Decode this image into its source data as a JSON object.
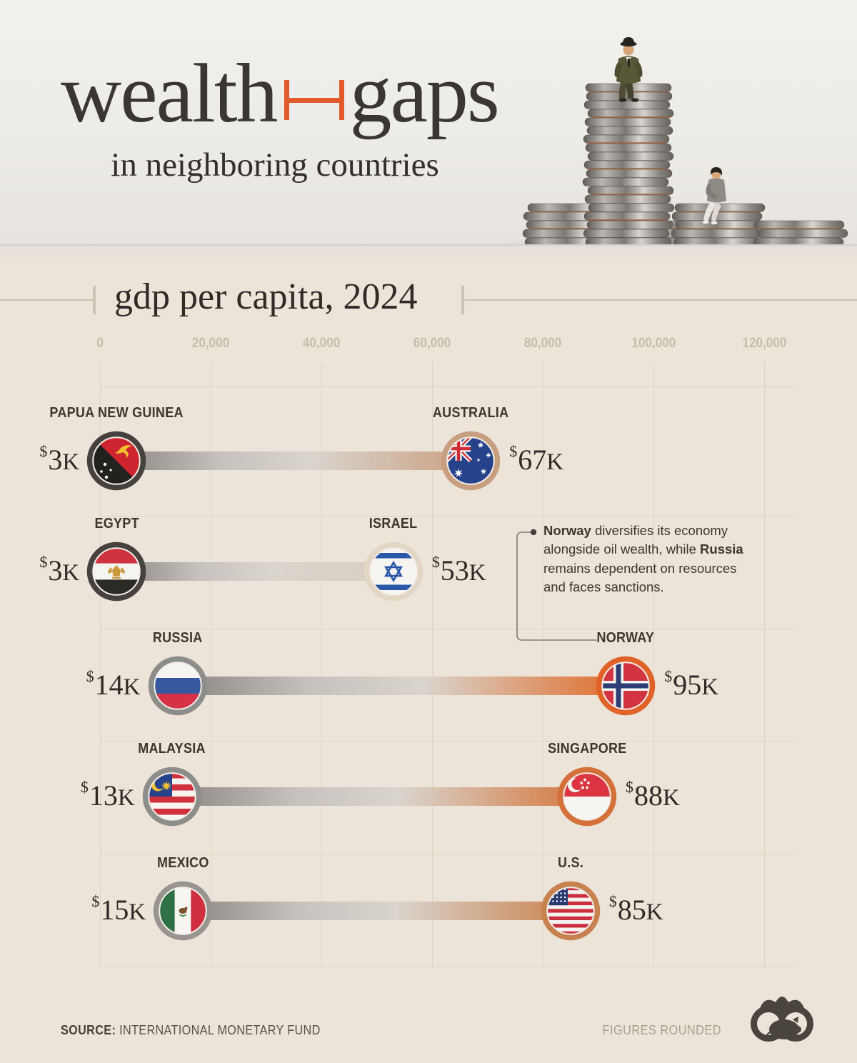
{
  "header": {
    "title_left": "wealth",
    "title_right": "gaps",
    "subtitle": "in neighboring countries",
    "accent_color": "#e05a2b",
    "gap_icon": "i-beam-connector-icon",
    "hero_icon": "coin-stacks-with-figurines-photo"
  },
  "section": {
    "title": "gdp per capita, 2024"
  },
  "chart_data": {
    "type": "dumbbell",
    "title": "gdp per capita, 2024",
    "unit": "USD",
    "grid": true,
    "x_axis": {
      "range": [
        0,
        120000
      ],
      "ticks": [
        0,
        20000,
        40000,
        60000,
        80000,
        100000,
        120000
      ],
      "tick_labels": [
        "0",
        "20,000",
        "40,000",
        "60,000",
        "80,000",
        "100,000",
        "120,000"
      ]
    },
    "pairs": [
      {
        "left": {
          "country": "PAPUA NEW GUINEA",
          "value": 3000,
          "label": "$3K",
          "flag": "papua-new-guinea",
          "ring_color": "#45413c"
        },
        "right": {
          "country": "AUSTRALIA",
          "value": 67000,
          "label": "$67K",
          "flag": "australia",
          "ring_color": "#c79e7f"
        },
        "bar_end_color": "#cba183"
      },
      {
        "left": {
          "country": "EGYPT",
          "value": 3000,
          "label": "$3K",
          "flag": "egypt",
          "ring_color": "#45413c"
        },
        "right": {
          "country": "ISRAEL",
          "value": 53000,
          "label": "$53K",
          "flag": "israel",
          "ring_color": "#e2d6c5"
        },
        "bar_end_color": "#d8cfc2"
      },
      {
        "left": {
          "country": "RUSSIA",
          "value": 14000,
          "label": "$14K",
          "flag": "russia",
          "ring_color": "#8d8d8b"
        },
        "right": {
          "country": "NORWAY",
          "value": 95000,
          "label": "$95K",
          "flag": "norway",
          "ring_color": "#e06228"
        },
        "bar_end_color": "#e06b28"
      },
      {
        "left": {
          "country": "MALAYSIA",
          "value": 13000,
          "label": "$13K",
          "flag": "malaysia",
          "ring_color": "#8d8d8b"
        },
        "right": {
          "country": "SINGAPORE",
          "value": 88000,
          "label": "$88K",
          "flag": "singapore",
          "ring_color": "#d4713a"
        },
        "bar_end_color": "#d4773c"
      },
      {
        "left": {
          "country": "MEXICO",
          "value": 15000,
          "label": "$15K",
          "flag": "mexico",
          "ring_color": "#98948f"
        },
        "right": {
          "country": "U.S.",
          "value": 85000,
          "label": "$85K",
          "flag": "united-states",
          "ring_color": "#c8824f"
        },
        "bar_end_color": "#ca8450"
      }
    ],
    "annotation": {
      "segments": [
        {
          "text": "Norway",
          "bold": true
        },
        {
          "text": " diversifies its economy alongside oil wealth, while ",
          "bold": false
        },
        {
          "text": "Russia",
          "bold": true
        },
        {
          "text": " remains dependent on resources and faces sanctions.",
          "bold": false
        }
      ],
      "target_country": "NORWAY"
    }
  },
  "footer": {
    "source_label": "SOURCE:",
    "source": "INTERNATIONAL MONETARY FUND",
    "note": "FIGURES ROUNDED",
    "logo_icon": "visual-capitalist-logo"
  }
}
